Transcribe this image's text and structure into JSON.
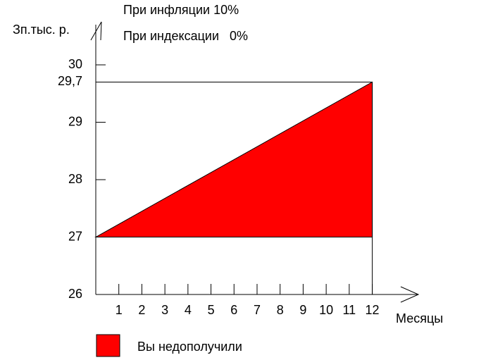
{
  "chart_data": {
    "type": "area",
    "title": "При инфляции 10%",
    "subtitle": "При индексации   0%",
    "y_label": "Зп.тыс. р.",
    "x_label": "Месяцы",
    "x": [
      0,
      12
    ],
    "series": [
      {
        "name": "Вы недополучили",
        "color": "#ff0000",
        "values": [
          27,
          29.7
        ],
        "base": [
          27,
          27
        ]
      }
    ],
    "xlim": [
      0,
      14
    ],
    "xticks": [
      1,
      2,
      3,
      4,
      5,
      6,
      7,
      8,
      9,
      10,
      11,
      12
    ],
    "ylim": [
      26,
      30.7
    ],
    "yticks": [
      26,
      27,
      28,
      29,
      {
        "value": 29.7,
        "label": "29,7"
      },
      30
    ]
  }
}
